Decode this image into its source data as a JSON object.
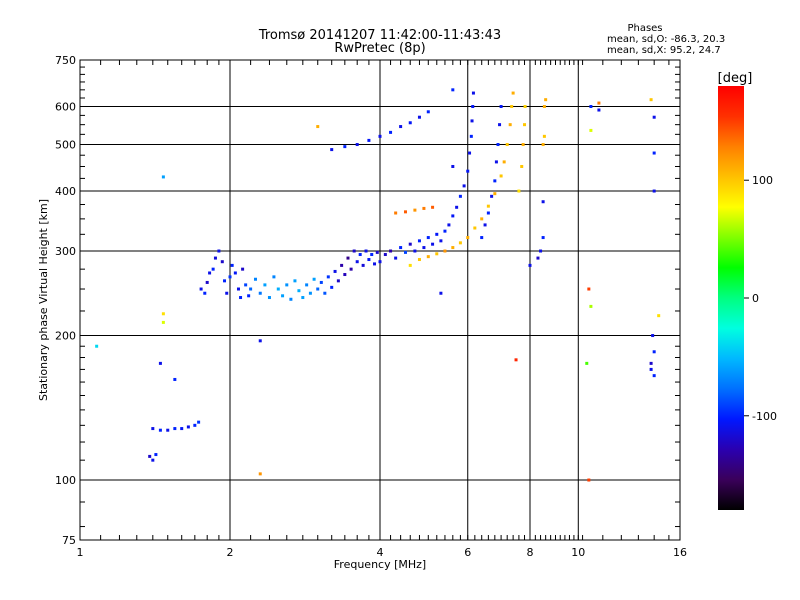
{
  "chart_data": {
    "type": "scatter",
    "title": "Tromsø 20141207 11:42:00-11:43:43",
    "subtitle": "RwPretec (8p)",
    "xlabel": "Frequency [MHz]",
    "ylabel": "Stationary phase Virtual Height [km]",
    "x_scale": "log",
    "y_scale": "log",
    "xlim": [
      1,
      16
    ],
    "ylim": [
      75,
      750
    ],
    "x_ticks": [
      "1",
      "2",
      "4",
      "6",
      "8",
      "10",
      "16"
    ],
    "y_ticks": [
      "75",
      "100",
      "200",
      "300",
      "400",
      "500",
      "600",
      "750"
    ],
    "grid": true,
    "stats": {
      "heading": "Phases",
      "line_o": "mean, sd,O: -86.3, 20.3",
      "line_x": "mean, sd,X:  95.2, 24.7"
    },
    "colorbar": {
      "label": "[deg]",
      "range": [
        -180,
        180
      ],
      "ticks": [
        "100",
        "0",
        "-100"
      ],
      "colors": [
        "#000000",
        "#3a005a",
        "#2a00b0",
        "#0018ff",
        "#0070ff",
        "#00b8ff",
        "#00ffe0",
        "#00ff80",
        "#00ff00",
        "#80ff00",
        "#ffff00",
        "#ffc000",
        "#ff8000",
        "#ff3000",
        "#ff0000"
      ]
    },
    "series": [
      {
        "values": [
          [
            1.08,
            190,
            -40
          ],
          [
            1.38,
            112,
            -120
          ],
          [
            1.4,
            110,
            -110
          ],
          [
            1.42,
            113,
            -100
          ],
          [
            1.4,
            128,
            -110
          ],
          [
            1.45,
            127,
            -100
          ],
          [
            1.5,
            127,
            -110
          ],
          [
            1.55,
            128,
            -100
          ],
          [
            1.6,
            128,
            -105
          ],
          [
            1.65,
            129,
            -110
          ],
          [
            1.7,
            130,
            -100
          ],
          [
            1.73,
            132,
            -95
          ],
          [
            1.45,
            175,
            -110
          ],
          [
            1.55,
            162,
            -100
          ],
          [
            1.47,
            213,
            70
          ],
          [
            1.47,
            222,
            90
          ],
          [
            1.47,
            428,
            -60
          ],
          [
            1.75,
            250,
            -110
          ],
          [
            1.78,
            245,
            -100
          ],
          [
            1.8,
            258,
            -120
          ],
          [
            1.82,
            270,
            -110
          ],
          [
            1.85,
            275,
            -100
          ],
          [
            1.87,
            290,
            -115
          ],
          [
            1.9,
            300,
            -110
          ],
          [
            1.93,
            285,
            -120
          ],
          [
            1.95,
            260,
            -100
          ],
          [
            1.97,
            245,
            -110
          ],
          [
            2.0,
            265,
            -95
          ],
          [
            2.02,
            280,
            -100
          ],
          [
            2.05,
            270,
            -105
          ],
          [
            2.08,
            250,
            -110
          ],
          [
            2.1,
            240,
            -100
          ],
          [
            2.12,
            275,
            -120
          ],
          [
            2.15,
            255,
            -90
          ],
          [
            2.18,
            242,
            -100
          ],
          [
            2.2,
            250,
            -80
          ],
          [
            2.25,
            262,
            -70
          ],
          [
            2.3,
            245,
            -75
          ],
          [
            2.35,
            255,
            -60
          ],
          [
            2.4,
            240,
            -65
          ],
          [
            2.45,
            265,
            -70
          ],
          [
            2.5,
            250,
            -55
          ],
          [
            2.55,
            242,
            -60
          ],
          [
            2.6,
            255,
            -65
          ],
          [
            2.65,
            238,
            -70
          ],
          [
            2.7,
            260,
            -60
          ],
          [
            2.75,
            248,
            -55
          ],
          [
            2.8,
            240,
            -60
          ],
          [
            2.85,
            255,
            -70
          ],
          [
            2.9,
            245,
            -65
          ],
          [
            2.95,
            262,
            -60
          ],
          [
            3.0,
            250,
            -80
          ],
          [
            3.05,
            258,
            -90
          ],
          [
            3.1,
            245,
            -85
          ],
          [
            3.15,
            265,
            -95
          ],
          [
            3.2,
            252,
            -100
          ],
          [
            3.25,
            272,
            -110
          ],
          [
            3.3,
            260,
            -120
          ],
          [
            3.35,
            280,
            -130
          ],
          [
            3.4,
            268,
            -125
          ],
          [
            3.45,
            290,
            -140
          ],
          [
            3.5,
            275,
            -130
          ],
          [
            3.55,
            300,
            -120
          ],
          [
            3.6,
            285,
            -110
          ],
          [
            3.65,
            295,
            -100
          ],
          [
            3.7,
            280,
            -115
          ],
          [
            3.75,
            300,
            -110
          ],
          [
            3.8,
            288,
            -105
          ],
          [
            3.85,
            295,
            -100
          ],
          [
            3.9,
            282,
            -110
          ],
          [
            3.95,
            298,
            -120
          ],
          [
            4.0,
            285,
            -110
          ],
          [
            4.1,
            295,
            -120
          ],
          [
            4.2,
            300,
            -130
          ],
          [
            4.3,
            290,
            -110
          ],
          [
            4.4,
            305,
            -100
          ],
          [
            4.5,
            298,
            -90
          ],
          [
            4.6,
            310,
            -120
          ],
          [
            4.7,
            300,
            -110
          ],
          [
            4.8,
            315,
            -100
          ],
          [
            4.9,
            305,
            -110
          ],
          [
            5.0,
            320,
            -100
          ],
          [
            5.1,
            310,
            -110
          ],
          [
            5.2,
            325,
            -105
          ],
          [
            5.3,
            315,
            -110
          ],
          [
            5.4,
            330,
            -100
          ],
          [
            5.5,
            340,
            -110
          ],
          [
            5.6,
            355,
            -105
          ],
          [
            5.7,
            370,
            -110
          ],
          [
            5.8,
            390,
            -100
          ],
          [
            5.9,
            410,
            -110
          ],
          [
            6.0,
            440,
            -105
          ],
          [
            6.05,
            480,
            -110
          ],
          [
            6.1,
            520,
            -100
          ],
          [
            6.12,
            560,
            -110
          ],
          [
            6.14,
            600,
            -105
          ],
          [
            6.16,
            640,
            -110
          ],
          [
            4.6,
            280,
            90
          ],
          [
            4.8,
            288,
            100
          ],
          [
            5.0,
            292,
            110
          ],
          [
            5.2,
            296,
            100
          ],
          [
            5.4,
            300,
            120
          ],
          [
            5.6,
            305,
            110
          ],
          [
            5.8,
            312,
            100
          ],
          [
            6.0,
            320,
            110
          ],
          [
            6.2,
            335,
            100
          ],
          [
            6.4,
            350,
            110
          ],
          [
            6.6,
            372,
            100
          ],
          [
            6.8,
            395,
            110
          ],
          [
            7.0,
            430,
            100
          ],
          [
            7.1,
            460,
            110
          ],
          [
            7.2,
            500,
            100
          ],
          [
            7.3,
            550,
            110
          ],
          [
            7.35,
            600,
            100
          ],
          [
            7.4,
            640,
            110
          ],
          [
            6.4,
            320,
            -100
          ],
          [
            6.5,
            340,
            -110
          ],
          [
            6.6,
            360,
            -100
          ],
          [
            6.7,
            390,
            -110
          ],
          [
            6.8,
            420,
            -100
          ],
          [
            6.85,
            460,
            -110
          ],
          [
            6.9,
            500,
            -100
          ],
          [
            6.95,
            550,
            -110
          ],
          [
            7.0,
            600,
            -105
          ],
          [
            7.6,
            400,
            90
          ],
          [
            7.7,
            450,
            100
          ],
          [
            7.75,
            500,
            110
          ],
          [
            7.8,
            550,
            100
          ],
          [
            7.82,
            600,
            95
          ],
          [
            3.2,
            488,
            -110
          ],
          [
            3.4,
            495,
            -100
          ],
          [
            3.6,
            500,
            -110
          ],
          [
            3.8,
            510,
            -105
          ],
          [
            4.0,
            520,
            -110
          ],
          [
            4.2,
            530,
            -100
          ],
          [
            4.4,
            545,
            -110
          ],
          [
            4.6,
            555,
            -105
          ],
          [
            4.8,
            570,
            -110
          ],
          [
            5.0,
            585,
            -100
          ],
          [
            4.3,
            360,
            130
          ],
          [
            4.5,
            362,
            140
          ],
          [
            4.7,
            365,
            120
          ],
          [
            4.9,
            368,
            130
          ],
          [
            5.1,
            370,
            140
          ],
          [
            5.6,
            450,
            -110
          ],
          [
            5.6,
            650,
            -100
          ],
          [
            5.3,
            245,
            -110
          ],
          [
            2.3,
            195,
            -110
          ],
          [
            2.3,
            103,
            120
          ],
          [
            3.0,
            545,
            110
          ],
          [
            8.3,
            290,
            -120
          ],
          [
            8.4,
            300,
            -110
          ],
          [
            8.5,
            320,
            -100
          ],
          [
            8.5,
            500,
            110
          ],
          [
            8.55,
            520,
            100
          ],
          [
            8.55,
            600,
            110
          ],
          [
            8.6,
            620,
            110
          ],
          [
            8.5,
            380,
            -110
          ],
          [
            8.0,
            280,
            -110
          ],
          [
            7.5,
            178,
            160
          ],
          [
            10.5,
            100,
            150
          ],
          [
            10.5,
            250,
            150
          ],
          [
            10.6,
            230,
            60
          ],
          [
            10.6,
            535,
            70
          ],
          [
            10.6,
            600,
            -100
          ],
          [
            10.4,
            175,
            40
          ],
          [
            11.0,
            610,
            130
          ],
          [
            11.0,
            590,
            -110
          ],
          [
            14.0,
            620,
            100
          ],
          [
            14.2,
            570,
            -110
          ],
          [
            14.2,
            480,
            -100
          ],
          [
            14.1,
            200,
            -110
          ],
          [
            14.2,
            185,
            -100
          ],
          [
            14.0,
            175,
            -120
          ],
          [
            14.0,
            170,
            -110
          ],
          [
            14.2,
            165,
            -100
          ],
          [
            14.2,
            400,
            -110
          ],
          [
            14.5,
            220,
            90
          ]
        ]
      }
    ]
  }
}
